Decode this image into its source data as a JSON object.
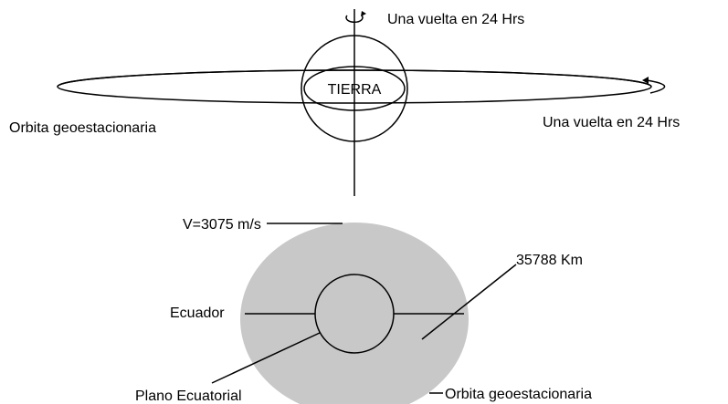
{
  "top": {
    "earth_label": "TIERRA",
    "rotation_label": "Una vuelta en 24 Hrs",
    "orbit_label": "Orbita geoestacionaria",
    "orbit_rotation_label": "Una vuelta en 24 Hrs"
  },
  "bottom": {
    "velocity_label": "V=3075 m/s",
    "distance_label": "35788 Km",
    "equator_label": "Ecuador",
    "plane_label": "Plano Ecuatorial",
    "orbit_label": "Orbita geoestacionaria"
  }
}
